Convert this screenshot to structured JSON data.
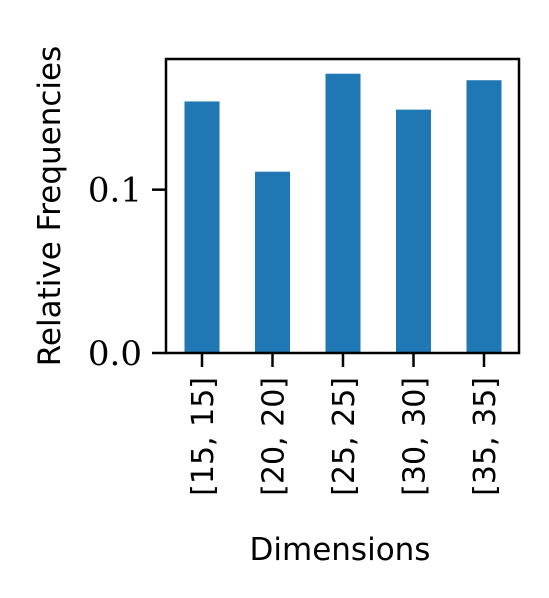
{
  "chart_data": {
    "type": "bar",
    "title": "",
    "xlabel": "Dimensions",
    "ylabel": "Relative Frequencies",
    "categories": [
      "[15, 15]",
      "[20, 20]",
      "[25, 25]",
      "[30, 30]",
      "[35, 35]"
    ],
    "values": [
      0.154,
      0.111,
      0.171,
      0.149,
      0.167
    ],
    "ylim": [
      0,
      0.18
    ],
    "yticks": [
      0.0,
      0.1
    ],
    "ytick_labels": [
      "0.0",
      "0.1"
    ],
    "bar_color": "#1f77b4",
    "grid": false,
    "legend": "none"
  }
}
